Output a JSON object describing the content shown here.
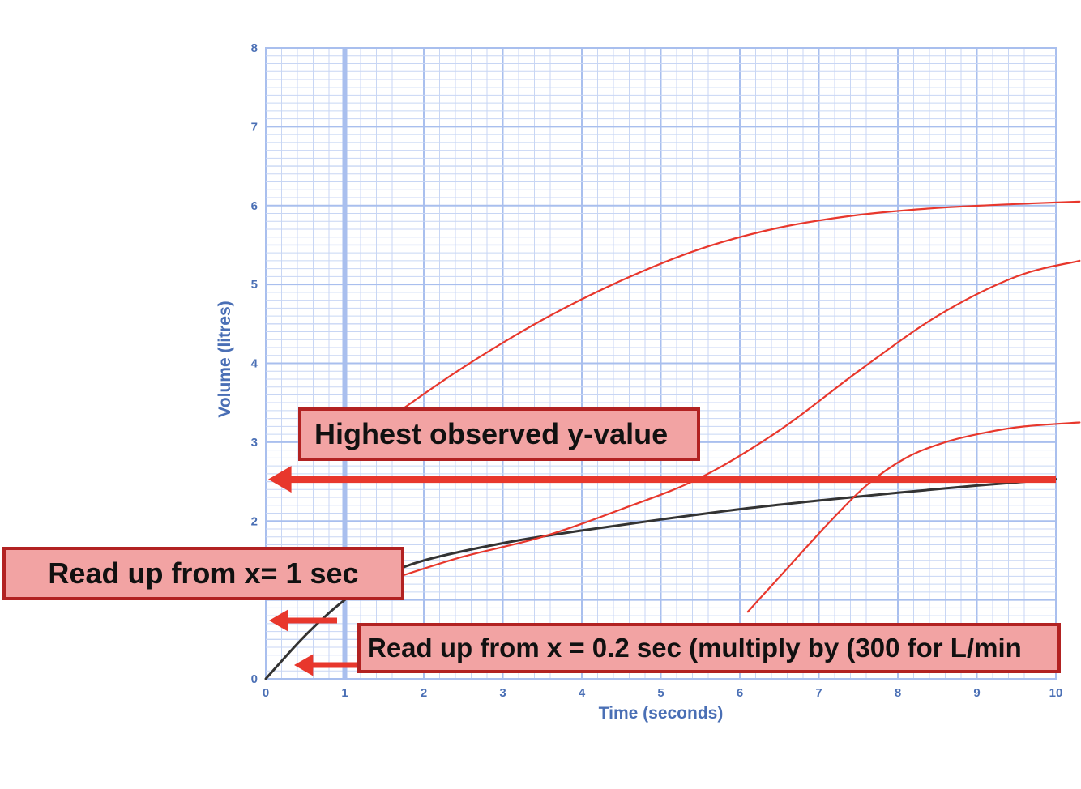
{
  "colors": {
    "grid_fine": "#c8d6f4",
    "grid_major": "#a9bfee",
    "axis_text": "#4a6fb5",
    "red": "#e8372c",
    "black_curve": "#333333",
    "callout_fill": "#f2a3a3",
    "callout_border": "#b22222"
  },
  "chart_data": {
    "type": "line",
    "xlabel": "Time (seconds)",
    "ylabel": "Volume (litres)",
    "xlim": [
      0,
      10
    ],
    "ylim": [
      0,
      8
    ],
    "x_ticks": [
      "0",
      "1",
      "2",
      "3",
      "4",
      "5",
      "6",
      "7",
      "8",
      "9",
      "10"
    ],
    "y_ticks": [
      "0",
      "2",
      "3",
      "4",
      "5",
      "6",
      "7",
      "8"
    ],
    "grid": true,
    "highlighted_gridline_x": 1,
    "series": [
      {
        "color": "#333333",
        "x": [
          0,
          0.5,
          1,
          1.5,
          2,
          3,
          4,
          5,
          6,
          7,
          8,
          9,
          10
        ],
        "y": [
          0,
          0.55,
          1,
          1.3,
          1.5,
          1.72,
          1.88,
          2.02,
          2.15,
          2.26,
          2.36,
          2.45,
          2.53
        ]
      },
      {
        "color": "#e8372c",
        "x": [
          1.7,
          2.5,
          3.5,
          4.5,
          5.5,
          6.5,
          7.5,
          8.5,
          9.5,
          10.3
        ],
        "y": [
          3.4,
          3.95,
          4.55,
          5.05,
          5.45,
          5.72,
          5.88,
          5.97,
          6.02,
          6.05
        ]
      },
      {
        "color": "#e8372c",
        "x": [
          1.7,
          2.5,
          3.5,
          4.5,
          5.5,
          6.5,
          7.5,
          8.5,
          9.5,
          10.3
        ],
        "y": [
          1.3,
          1.55,
          1.8,
          2.15,
          2.55,
          3.15,
          3.9,
          4.6,
          5.1,
          5.3
        ]
      },
      {
        "color": "#e8372c",
        "x": [
          6.1,
          6.6,
          7.1,
          7.6,
          8.1,
          8.6,
          9.1,
          9.6,
          10.3
        ],
        "y": [
          0.85,
          1.4,
          1.95,
          2.45,
          2.8,
          3.0,
          3.12,
          3.2,
          3.25
        ]
      }
    ],
    "annotations": [
      {
        "text": "Highest observed y-value",
        "arrow_y": 2.53
      },
      {
        "text": "Read up from x= 1 sec",
        "arrow_y": 0.8
      },
      {
        "text": "Read up from x = 0.2 sec (multiply by (300 for L/min",
        "arrow_y": 0.2
      }
    ]
  }
}
